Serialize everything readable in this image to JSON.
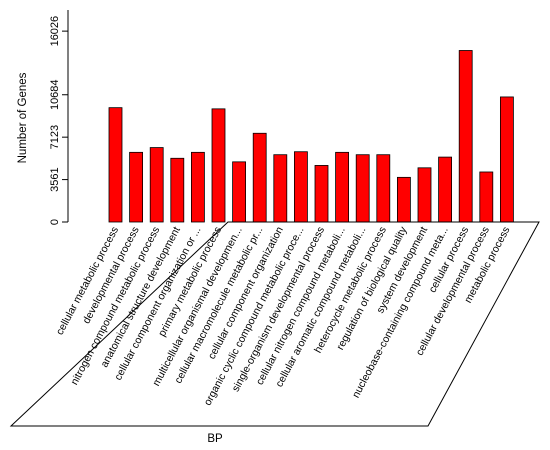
{
  "chart_data": {
    "type": "bar",
    "ylabel": "Number of Genes",
    "xlabel": "BP",
    "ylim": [
      0,
      17800
    ],
    "yticks": [
      0,
      3561,
      7123,
      10684,
      16026
    ],
    "bar_color": "#ff0000",
    "categories": [
      "cellular metabolic process",
      "developmental process",
      "nitrogen compound metabolic process",
      "anatomical structure development",
      "cellular component organization or ...",
      "primary metabolic process",
      "multicellular organismal developmen...",
      "cellular macromolecule metabolic pr...",
      "cellular component organization",
      "organic cyclic compound metabolic proce...",
      "single-organism developmental process",
      "cellular nitrogen compound metaboli...",
      "cellular aromatic compound metaboli...",
      "heterocycle metabolic process",
      "regulation of biological quality",
      "system development",
      "nucleobase-containing compound meta...",
      "cellular process",
      "cellular developmental process",
      "metabolic process"
    ],
    "values": [
      9600,
      5850,
      6250,
      5350,
      5850,
      9500,
      5050,
      7450,
      5650,
      5900,
      4750,
      5850,
      5650,
      5650,
      3750,
      4550,
      5450,
      14400,
      4200,
      10500
    ]
  }
}
